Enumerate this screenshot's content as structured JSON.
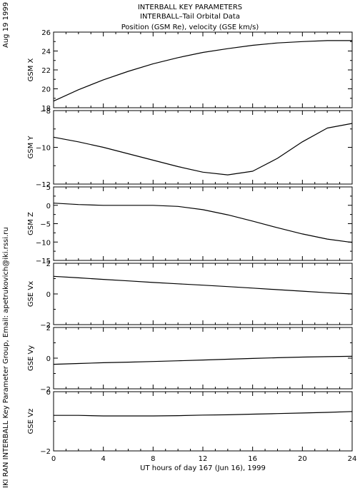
{
  "header": {
    "title_lines": [
      "INTERBALL KEY PARAMETERS",
      "INTERBALL–Tail Orbital Data",
      "Position (GSM Re), velocity (GSE km/s)"
    ],
    "date": "Aug 19 1999",
    "credit": "IKI RAN INTERBALL Key Parameter Group, Email: apetrukovich@iki.rssi.ru"
  },
  "chart_data": {
    "type": "line",
    "xlabel": "UT hours of day 167 (Jun 16), 1999",
    "xlim": [
      0,
      24
    ],
    "xticks": [
      0,
      4,
      8,
      12,
      16,
      20,
      24
    ],
    "x": [
      0,
      2,
      4,
      6,
      8,
      10,
      12,
      14,
      16,
      18,
      20,
      22,
      24
    ],
    "panels": [
      {
        "ylabel": "GSM X",
        "ylim": [
          18,
          26
        ],
        "yticks": [
          18,
          20,
          22,
          24,
          26
        ],
        "values": [
          18.7,
          19.9,
          20.95,
          21.85,
          22.65,
          23.3,
          23.85,
          24.25,
          24.6,
          24.85,
          25.0,
          25.1,
          25.1
        ]
      },
      {
        "ylabel": "GSM Y",
        "ylim": [
          -12,
          -8
        ],
        "yticks": [
          -12,
          -10,
          -8
        ],
        "values": [
          -9.45,
          -9.7,
          -10.0,
          -10.35,
          -10.7,
          -11.05,
          -11.35,
          -11.5,
          -11.3,
          -10.6,
          -9.7,
          -8.95,
          -8.7
        ]
      },
      {
        "ylabel": "GSM Z",
        "ylim": [
          -15,
          5
        ],
        "yticks": [
          -15,
          -10,
          -5,
          0,
          5
        ],
        "values": [
          0.6,
          0.2,
          0.0,
          0.0,
          0.0,
          -0.3,
          -1.2,
          -2.6,
          -4.3,
          -6.1,
          -7.8,
          -9.2,
          -10.1
        ]
      },
      {
        "ylabel": "GSE Vx",
        "ylim": [
          -2,
          2
        ],
        "yticks": [
          -2,
          0,
          2
        ],
        "values": [
          1.15,
          1.05,
          0.95,
          0.85,
          0.75,
          0.66,
          0.57,
          0.48,
          0.38,
          0.28,
          0.18,
          0.08,
          0.0
        ]
      },
      {
        "ylabel": "GSE Vy",
        "ylim": [
          -2,
          2
        ],
        "yticks": [
          -2,
          0,
          2
        ],
        "values": [
          -0.4,
          -0.35,
          -0.3,
          -0.26,
          -0.22,
          -0.17,
          -0.12,
          -0.07,
          -0.02,
          0.03,
          0.07,
          0.1,
          0.12
        ]
      },
      {
        "ylabel": "GSE Vz",
        "ylim": [
          -2,
          0
        ],
        "yticks": [
          -2,
          0
        ],
        "values": [
          -0.8,
          -0.8,
          -0.82,
          -0.82,
          -0.82,
          -0.81,
          -0.79,
          -0.78,
          -0.76,
          -0.74,
          -0.72,
          -0.7,
          -0.67
        ]
      }
    ]
  }
}
